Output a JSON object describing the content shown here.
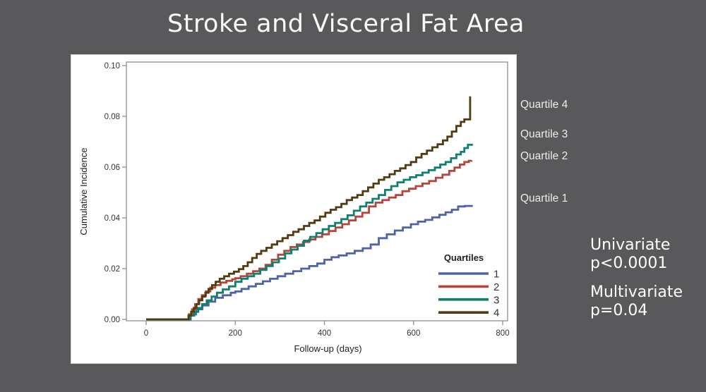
{
  "slide": {
    "title": "Stroke and Visceral Fat Area",
    "background_color": "#59595b",
    "title_color": "#fbfbfb",
    "quartile_labels": [
      "Quartile 4",
      "Quartile 3",
      "Quartile 2",
      "Quartile 1"
    ],
    "stats": [
      {
        "label": "Univariate",
        "value": "p<0.0001"
      },
      {
        "label": "Multivariate",
        "value": "p=0.04"
      }
    ]
  },
  "chart_data": {
    "type": "line",
    "subtype": "step-cumulative-incidence",
    "title": "",
    "xlabel": "Follow-up (days)",
    "ylabel": "Cumulative Incidence",
    "xlim": [
      0,
      800
    ],
    "ylim": [
      0,
      0.1
    ],
    "xticks": [
      0,
      200,
      400,
      600,
      800
    ],
    "ytick_labels": [
      "0.00",
      "0.02",
      "0.04",
      "0.06",
      "0.08",
      "0.10"
    ],
    "grid": false,
    "legend": {
      "title": "Quartiles",
      "position": "inside-bottom-right",
      "entries": [
        {
          "label": "1",
          "color": "#5063a6"
        },
        {
          "label": "2",
          "color": "#b2453c"
        },
        {
          "label": "3",
          "color": "#10806e"
        },
        {
          "label": "4",
          "color": "#513b10"
        }
      ]
    },
    "series": [
      {
        "name": "Quartile 1",
        "color": "#5063a6",
        "points": [
          [
            0,
            0
          ],
          [
            90,
            0
          ],
          [
            100,
            0.002
          ],
          [
            112,
            0.004
          ],
          [
            126,
            0.0055
          ],
          [
            140,
            0.007
          ],
          [
            155,
            0.0085
          ],
          [
            172,
            0.0095
          ],
          [
            190,
            0.0105
          ],
          [
            200,
            0.011
          ],
          [
            214,
            0.012
          ],
          [
            230,
            0.013
          ],
          [
            246,
            0.014
          ],
          [
            262,
            0.015
          ],
          [
            278,
            0.016
          ],
          [
            295,
            0.017
          ],
          [
            312,
            0.018
          ],
          [
            330,
            0.019
          ],
          [
            348,
            0.02
          ],
          [
            366,
            0.021
          ],
          [
            384,
            0.022
          ],
          [
            400,
            0.0235
          ],
          [
            416,
            0.0245
          ],
          [
            432,
            0.0252
          ],
          [
            450,
            0.026
          ],
          [
            468,
            0.027
          ],
          [
            486,
            0.028
          ],
          [
            504,
            0.0295
          ],
          [
            522,
            0.032
          ],
          [
            540,
            0.0335
          ],
          [
            558,
            0.035
          ],
          [
            576,
            0.0362
          ],
          [
            594,
            0.0375
          ],
          [
            610,
            0.0385
          ],
          [
            626,
            0.0392
          ],
          [
            642,
            0.0402
          ],
          [
            658,
            0.0412
          ],
          [
            672,
            0.0422
          ],
          [
            686,
            0.0432
          ],
          [
            700,
            0.0445
          ],
          [
            715,
            0.0447
          ],
          [
            733,
            0.0447
          ]
        ]
      },
      {
        "name": "Quartile 2",
        "color": "#b2453c",
        "points": [
          [
            0,
            0
          ],
          [
            90,
            0
          ],
          [
            96,
            0.002
          ],
          [
            103,
            0.004
          ],
          [
            110,
            0.006
          ],
          [
            117,
            0.008
          ],
          [
            125,
            0.0095
          ],
          [
            134,
            0.011
          ],
          [
            144,
            0.0125
          ],
          [
            155,
            0.0135
          ],
          [
            167,
            0.0145
          ],
          [
            180,
            0.0152
          ],
          [
            193,
            0.0158
          ],
          [
            200,
            0.0162
          ],
          [
            212,
            0.017
          ],
          [
            226,
            0.018
          ],
          [
            240,
            0.019
          ],
          [
            254,
            0.02
          ],
          [
            268,
            0.0215
          ],
          [
            282,
            0.0235
          ],
          [
            296,
            0.0255
          ],
          [
            310,
            0.027
          ],
          [
            324,
            0.0285
          ],
          [
            338,
            0.0295
          ],
          [
            352,
            0.0305
          ],
          [
            366,
            0.0315
          ],
          [
            380,
            0.0325
          ],
          [
            395,
            0.0335
          ],
          [
            410,
            0.0348
          ],
          [
            425,
            0.0362
          ],
          [
            440,
            0.0375
          ],
          [
            455,
            0.039
          ],
          [
            470,
            0.0405
          ],
          [
            485,
            0.042
          ],
          [
            500,
            0.0445
          ],
          [
            515,
            0.046
          ],
          [
            530,
            0.047
          ],
          [
            545,
            0.048
          ],
          [
            560,
            0.049
          ],
          [
            575,
            0.0505
          ],
          [
            590,
            0.0515
          ],
          [
            605,
            0.0525
          ],
          [
            620,
            0.0535
          ],
          [
            635,
            0.0545
          ],
          [
            650,
            0.0558
          ],
          [
            665,
            0.057
          ],
          [
            680,
            0.0585
          ],
          [
            692,
            0.0598
          ],
          [
            704,
            0.061
          ],
          [
            714,
            0.062
          ],
          [
            724,
            0.0625
          ],
          [
            730,
            0.0627
          ]
        ]
      },
      {
        "name": "Quartile 3",
        "color": "#10806e",
        "points": [
          [
            0,
            0
          ],
          [
            90,
            0
          ],
          [
            99,
            0.0015
          ],
          [
            108,
            0.003
          ],
          [
            117,
            0.0045
          ],
          [
            126,
            0.006
          ],
          [
            136,
            0.0075
          ],
          [
            147,
            0.009
          ],
          [
            159,
            0.0105
          ],
          [
            172,
            0.0118
          ],
          [
            186,
            0.013
          ],
          [
            200,
            0.0148
          ],
          [
            214,
            0.016
          ],
          [
            228,
            0.017
          ],
          [
            242,
            0.018
          ],
          [
            256,
            0.0195
          ],
          [
            270,
            0.021
          ],
          [
            284,
            0.0225
          ],
          [
            298,
            0.024
          ],
          [
            312,
            0.026
          ],
          [
            326,
            0.0275
          ],
          [
            340,
            0.029
          ],
          [
            354,
            0.031
          ],
          [
            368,
            0.0325
          ],
          [
            382,
            0.034
          ],
          [
            396,
            0.0355
          ],
          [
            410,
            0.0368
          ],
          [
            424,
            0.038
          ],
          [
            438,
            0.0395
          ],
          [
            452,
            0.041
          ],
          [
            466,
            0.0428
          ],
          [
            480,
            0.0445
          ],
          [
            494,
            0.046
          ],
          [
            508,
            0.0475
          ],
          [
            522,
            0.049
          ],
          [
            536,
            0.051
          ],
          [
            550,
            0.0525
          ],
          [
            564,
            0.054
          ],
          [
            578,
            0.055
          ],
          [
            592,
            0.056
          ],
          [
            606,
            0.0568
          ],
          [
            620,
            0.0578
          ],
          [
            634,
            0.0588
          ],
          [
            648,
            0.0598
          ],
          [
            660,
            0.061
          ],
          [
            672,
            0.062
          ],
          [
            684,
            0.0635
          ],
          [
            696,
            0.065
          ],
          [
            706,
            0.066
          ],
          [
            714,
            0.0675
          ],
          [
            722,
            0.0688
          ],
          [
            731,
            0.0692
          ]
        ]
      },
      {
        "name": "Quartile 4",
        "color": "#513b10",
        "points": [
          [
            0,
            0
          ],
          [
            90,
            0
          ],
          [
            95,
            0.0015
          ],
          [
            101,
            0.003
          ],
          [
            107,
            0.0045
          ],
          [
            113,
            0.006
          ],
          [
            119,
            0.0075
          ],
          [
            126,
            0.009
          ],
          [
            133,
            0.0105
          ],
          [
            140,
            0.012
          ],
          [
            148,
            0.0135
          ],
          [
            156,
            0.0148
          ],
          [
            165,
            0.016
          ],
          [
            175,
            0.017
          ],
          [
            186,
            0.018
          ],
          [
            197,
            0.0188
          ],
          [
            208,
            0.0198
          ],
          [
            218,
            0.021
          ],
          [
            228,
            0.0225
          ],
          [
            238,
            0.0242
          ],
          [
            248,
            0.0258
          ],
          [
            258,
            0.027
          ],
          [
            270,
            0.0282
          ],
          [
            282,
            0.0295
          ],
          [
            294,
            0.0308
          ],
          [
            306,
            0.032
          ],
          [
            318,
            0.0332
          ],
          [
            330,
            0.0345
          ],
          [
            342,
            0.0355
          ],
          [
            354,
            0.0368
          ],
          [
            366,
            0.038
          ],
          [
            378,
            0.039
          ],
          [
            390,
            0.0405
          ],
          [
            402,
            0.042
          ],
          [
            414,
            0.0432
          ],
          [
            426,
            0.0442
          ],
          [
            438,
            0.0455
          ],
          [
            450,
            0.047
          ],
          [
            462,
            0.048
          ],
          [
            474,
            0.049
          ],
          [
            486,
            0.0505
          ],
          [
            498,
            0.052
          ],
          [
            510,
            0.0535
          ],
          [
            522,
            0.055
          ],
          [
            534,
            0.056
          ],
          [
            546,
            0.0572
          ],
          [
            558,
            0.0585
          ],
          [
            570,
            0.0595
          ],
          [
            582,
            0.0608
          ],
          [
            594,
            0.062
          ],
          [
            606,
            0.0638
          ],
          [
            618,
            0.0652
          ],
          [
            630,
            0.0665
          ],
          [
            642,
            0.0678
          ],
          [
            654,
            0.069
          ],
          [
            666,
            0.0705
          ],
          [
            676,
            0.072
          ],
          [
            686,
            0.074
          ],
          [
            696,
            0.0762
          ],
          [
            706,
            0.0778
          ],
          [
            714,
            0.0788
          ],
          [
            727,
            0.0875
          ],
          [
            729,
            0.0875
          ]
        ]
      }
    ]
  }
}
